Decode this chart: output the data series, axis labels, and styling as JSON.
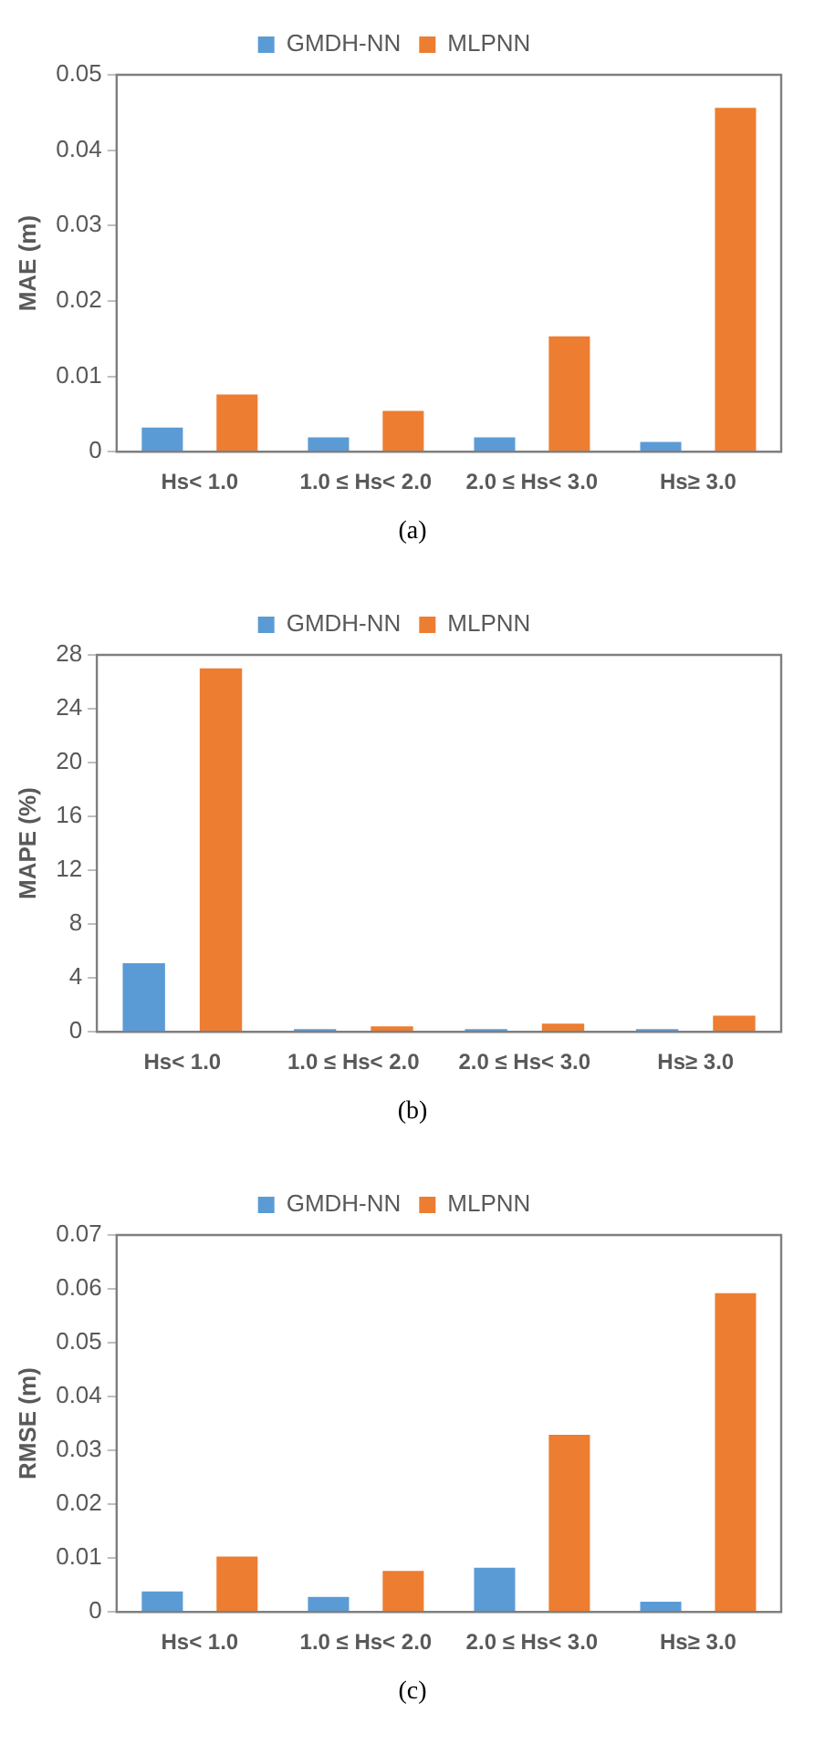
{
  "chart_data": [
    {
      "type": "bar",
      "ylabel": "MAE (m)",
      "categories": [
        "Hs< 1.0",
        "1.0 ≤ Hs< 2.0",
        "2.0 ≤ Hs< 3.0",
        "Hs≥ 3.0"
      ],
      "series": [
        {
          "name": "GMDH-NN",
          "color": "#5b9bd5",
          "values": [
            0.0032,
            0.0019,
            0.0019,
            0.0013
          ]
        },
        {
          "name": "MLPNN",
          "color": "#ed7d31",
          "values": [
            0.0076,
            0.0054,
            0.0153,
            0.0456
          ]
        }
      ],
      "ylim": [
        0,
        0.05
      ],
      "yticks": [
        0,
        0.01,
        0.02,
        0.03,
        0.04,
        0.05
      ],
      "grid": false,
      "legend": "top",
      "annotations": [
        "(a)"
      ]
    },
    {
      "type": "bar",
      "ylabel": "MAPE (%)",
      "categories": [
        "Hs< 1.0",
        "1.0 ≤ Hs< 2.0",
        "2.0 ≤ Hs< 3.0",
        "Hs≥ 3.0"
      ],
      "series": [
        {
          "name": "GMDH-NN",
          "color": "#5b9bd5",
          "values": [
            5.1,
            0.2,
            0.2,
            0.2
          ]
        },
        {
          "name": "MLPNN",
          "color": "#ed7d31",
          "values": [
            27.0,
            0.4,
            0.6,
            1.2
          ]
        }
      ],
      "ylim": [
        0,
        28
      ],
      "yticks": [
        0,
        4,
        8,
        12,
        16,
        20,
        24,
        28
      ],
      "grid": false,
      "legend": "top",
      "annotations": [
        "(b)"
      ]
    },
    {
      "type": "bar",
      "ylabel": "RMSE (m)",
      "categories": [
        "Hs< 1.0",
        "1.0 ≤ Hs< 2.0",
        "2.0 ≤ Hs< 3.0",
        "Hs≥ 3.0"
      ],
      "series": [
        {
          "name": "GMDH-NN",
          "color": "#5b9bd5",
          "values": [
            0.0038,
            0.0028,
            0.0082,
            0.0019
          ]
        },
        {
          "name": "MLPNN",
          "color": "#ed7d31",
          "values": [
            0.0103,
            0.0076,
            0.0329,
            0.0592
          ]
        }
      ],
      "ylim": [
        0,
        0.07
      ],
      "yticks": [
        0,
        0.01,
        0.02,
        0.03,
        0.04,
        0.05,
        0.06,
        0.07
      ],
      "grid": false,
      "legend": "top",
      "annotations": [
        "(c)"
      ]
    }
  ]
}
